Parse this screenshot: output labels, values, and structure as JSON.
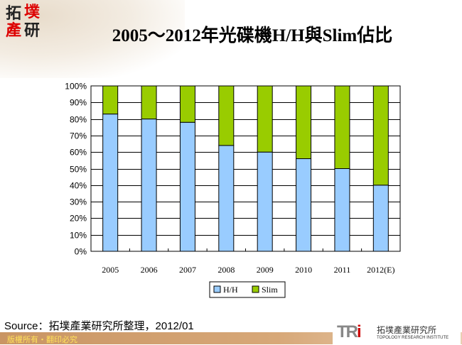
{
  "logo": {
    "chars": [
      "拓",
      "墣",
      "產",
      "研"
    ]
  },
  "chart_data": {
    "type": "bar",
    "stacked": "percent",
    "title": "2005～2012年光碟機H/H與Slim佔比",
    "categories": [
      "2005",
      "2006",
      "2007",
      "2008",
      "2009",
      "2010",
      "2011",
      "2012(E)"
    ],
    "series": [
      {
        "name": "H/H",
        "values": [
          83,
          80,
          78,
          64,
          60,
          56,
          50,
          40
        ],
        "color": "#99ccff"
      },
      {
        "name": "Slim",
        "values": [
          17,
          20,
          22,
          36,
          40,
          44,
          50,
          60
        ],
        "color": "#99cc00"
      }
    ],
    "ylim": [
      0,
      100
    ],
    "yticks": [
      "0%",
      "10%",
      "20%",
      "30%",
      "40%",
      "50%",
      "60%",
      "70%",
      "80%",
      "90%",
      "100%"
    ],
    "grid": true,
    "legend": "bottom"
  },
  "source": "Source：拓墣產業研究所整理，2012/01",
  "footer": {
    "copyright": "版權所有・翻印必究",
    "brand_letters": "TRi",
    "brand_cn": "拓墣產業研究所",
    "brand_en": "TOPOLOGY RESEARCH INSTITUTE"
  }
}
